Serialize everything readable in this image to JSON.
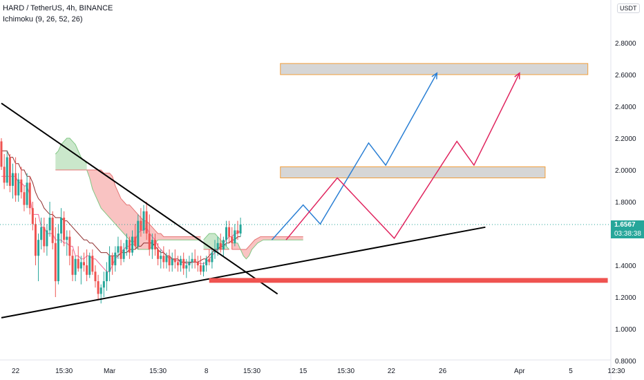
{
  "header": {
    "title": "HARD / TetherUS, 4h, BINANCE",
    "indicator": "Ichimoku (9, 26, 52, 26)"
  },
  "price_axis": {
    "currency": "USDT",
    "last_price": "1.6567",
    "countdown": "03:38:38"
  },
  "colors": {
    "up": "#26a69a",
    "down": "#ef5350",
    "cloud_bull": "#66bb6a",
    "cloud_bear": "#ef5350",
    "forecast_blue": "#2a7fd4",
    "forecast_pink": "#e0245e",
    "zone_fill": "#d6d6d6",
    "zone_border": "#f29d38",
    "support_bar": "#ef5350"
  },
  "chart_data": {
    "type": "candlestick",
    "symbol": "HARD / TetherUS",
    "interval": "4h",
    "exchange": "BINANCE",
    "y_ticks": [
      0.8,
      1.0,
      1.2,
      1.4,
      1.6,
      1.8,
      2.0,
      2.2,
      2.4,
      2.6,
      2.8
    ],
    "y_tick_labels": [
      "0.8000",
      "1.0000",
      "1.2000",
      "1.4000",
      "1.6000",
      "1.8000",
      "2.0000",
      "2.2000",
      "2.4000",
      "2.6000",
      "2.8000"
    ],
    "ylim": [
      0.8,
      3.0
    ],
    "x_ticks": [
      {
        "label": "22",
        "bar": 5
      },
      {
        "label": "15:30",
        "bar": 22
      },
      {
        "label": "Mar",
        "bar": 38
      },
      {
        "label": "15:30",
        "bar": 55
      },
      {
        "label": "8",
        "bar": 72
      },
      {
        "label": "15:30",
        "bar": 88
      },
      {
        "label": "15",
        "bar": 106
      },
      {
        "label": "15:30",
        "bar": 121
      },
      {
        "label": "22",
        "bar": 137
      },
      {
        "label": "26",
        "bar": 155
      },
      {
        "label": "Apr",
        "bar": 182
      },
      {
        "label": "5",
        "bar": 200
      },
      {
        "label": "12:30",
        "bar": 216
      }
    ],
    "candles": [
      [
        2.18,
        2.2,
        2.0,
        2.02
      ],
      [
        2.02,
        2.1,
        1.88,
        1.92
      ],
      [
        1.92,
        2.12,
        1.9,
        2.08
      ],
      [
        2.08,
        2.1,
        1.86,
        1.9
      ],
      [
        1.9,
        2.04,
        1.82,
        1.98
      ],
      [
        1.98,
        2.08,
        1.8,
        1.84
      ],
      [
        1.84,
        1.98,
        1.8,
        1.94
      ],
      [
        1.94,
        2.02,
        1.82,
        1.86
      ],
      [
        1.86,
        1.9,
        1.74,
        1.78
      ],
      [
        1.78,
        1.98,
        1.76,
        1.92
      ],
      [
        1.92,
        1.96,
        1.72,
        1.76
      ],
      [
        1.76,
        1.8,
        1.62,
        1.66
      ],
      [
        1.66,
        1.7,
        1.4,
        1.46
      ],
      [
        1.46,
        1.6,
        1.3,
        1.56
      ],
      [
        1.56,
        1.7,
        1.5,
        1.64
      ],
      [
        1.64,
        1.7,
        1.48,
        1.52
      ],
      [
        1.52,
        1.66,
        1.46,
        1.62
      ],
      [
        1.62,
        1.8,
        1.58,
        1.7
      ],
      [
        1.7,
        1.74,
        1.5,
        1.54
      ],
      [
        1.54,
        1.64,
        1.2,
        1.3
      ],
      [
        1.3,
        1.66,
        1.28,
        1.6
      ],
      [
        1.6,
        1.76,
        1.54,
        1.7
      ],
      [
        1.7,
        1.74,
        1.52,
        1.56
      ],
      [
        1.56,
        1.62,
        1.46,
        1.58
      ],
      [
        1.58,
        1.62,
        1.4,
        1.46
      ],
      [
        1.46,
        1.5,
        1.3,
        1.34
      ],
      [
        1.34,
        1.46,
        1.3,
        1.44
      ],
      [
        1.44,
        1.52,
        1.36,
        1.38
      ],
      [
        1.38,
        1.46,
        1.28,
        1.42
      ],
      [
        1.42,
        1.48,
        1.36,
        1.4
      ],
      [
        1.4,
        1.5,
        1.3,
        1.34
      ],
      [
        1.34,
        1.48,
        1.32,
        1.46
      ],
      [
        1.46,
        1.5,
        1.34,
        1.36
      ],
      [
        1.36,
        1.4,
        1.26,
        1.3
      ],
      [
        1.3,
        1.34,
        1.18,
        1.22
      ],
      [
        1.22,
        1.28,
        1.16,
        1.26
      ],
      [
        1.26,
        1.36,
        1.2,
        1.3
      ],
      [
        1.3,
        1.42,
        1.24,
        1.36
      ],
      [
        1.36,
        1.52,
        1.3,
        1.46
      ],
      [
        1.46,
        1.48,
        1.34,
        1.4
      ],
      [
        1.4,
        1.52,
        1.36,
        1.48
      ],
      [
        1.48,
        1.58,
        1.44,
        1.52
      ],
      [
        1.52,
        1.56,
        1.4,
        1.44
      ],
      [
        1.44,
        1.54,
        1.42,
        1.5
      ],
      [
        1.5,
        1.6,
        1.46,
        1.56
      ],
      [
        1.56,
        1.58,
        1.44,
        1.48
      ],
      [
        1.48,
        1.62,
        1.46,
        1.58
      ],
      [
        1.58,
        1.66,
        1.5,
        1.52
      ],
      [
        1.52,
        1.72,
        1.5,
        1.68
      ],
      [
        1.68,
        1.76,
        1.58,
        1.62
      ],
      [
        1.62,
        1.78,
        1.6,
        1.74
      ],
      [
        1.74,
        1.8,
        1.56,
        1.6
      ],
      [
        1.6,
        1.72,
        1.46,
        1.5
      ],
      [
        1.5,
        1.6,
        1.44,
        1.56
      ],
      [
        1.56,
        1.6,
        1.46,
        1.5
      ],
      [
        1.5,
        1.54,
        1.4,
        1.44
      ],
      [
        1.44,
        1.5,
        1.38,
        1.46
      ],
      [
        1.46,
        1.52,
        1.38,
        1.42
      ],
      [
        1.42,
        1.48,
        1.38,
        1.46
      ],
      [
        1.46,
        1.5,
        1.36,
        1.4
      ],
      [
        1.4,
        1.48,
        1.36,
        1.44
      ],
      [
        1.44,
        1.5,
        1.38,
        1.42
      ],
      [
        1.42,
        1.46,
        1.36,
        1.4
      ],
      [
        1.4,
        1.46,
        1.36,
        1.44
      ],
      [
        1.44,
        1.48,
        1.34,
        1.38
      ],
      [
        1.38,
        1.44,
        1.32,
        1.4
      ],
      [
        1.4,
        1.46,
        1.36,
        1.42
      ],
      [
        1.42,
        1.48,
        1.38,
        1.44
      ],
      [
        1.44,
        1.5,
        1.38,
        1.42
      ],
      [
        1.42,
        1.46,
        1.36,
        1.4
      ],
      [
        1.4,
        1.46,
        1.34,
        1.36
      ],
      [
        1.36,
        1.42,
        1.33,
        1.4
      ],
      [
        1.4,
        1.46,
        1.36,
        1.44
      ],
      [
        1.44,
        1.5,
        1.4,
        1.42
      ],
      [
        1.42,
        1.5,
        1.38,
        1.48
      ],
      [
        1.48,
        1.56,
        1.44,
        1.5
      ],
      [
        1.5,
        1.58,
        1.46,
        1.54
      ],
      [
        1.54,
        1.6,
        1.48,
        1.5
      ],
      [
        1.5,
        1.58,
        1.46,
        1.56
      ],
      [
        1.56,
        1.68,
        1.52,
        1.64
      ],
      [
        1.64,
        1.68,
        1.54,
        1.58
      ],
      [
        1.58,
        1.64,
        1.5,
        1.54
      ],
      [
        1.54,
        1.66,
        1.52,
        1.62
      ],
      [
        1.62,
        1.68,
        1.56,
        1.6
      ],
      [
        1.6,
        1.7,
        1.58,
        1.6567
      ]
    ],
    "ichimoku": {
      "tenkan": [
        1.96,
        1.96,
        1.96,
        1.96,
        1.96,
        1.96,
        1.92,
        1.92,
        1.9,
        1.9,
        1.84,
        1.72,
        1.72,
        1.72,
        1.64,
        1.64,
        1.6,
        1.6,
        1.6,
        1.56,
        1.56,
        1.56,
        1.54,
        1.54,
        1.52,
        1.52,
        1.46,
        1.46,
        1.44,
        1.44,
        1.46,
        1.46,
        1.44,
        1.44,
        1.42,
        1.4,
        1.38,
        1.36,
        1.36,
        1.4,
        1.44,
        1.46,
        1.48,
        1.5,
        1.52,
        1.52,
        1.54,
        1.56,
        1.6,
        1.62,
        1.62,
        1.64,
        1.6,
        1.58,
        1.56,
        1.52,
        1.5,
        1.48,
        1.46,
        1.44,
        1.44,
        1.43,
        1.43,
        1.42,
        1.42,
        1.41,
        1.41,
        1.42,
        1.42,
        1.42,
        1.41,
        1.41,
        1.42,
        1.44,
        1.46,
        1.48,
        1.5,
        1.52,
        1.54,
        1.56,
        1.58,
        1.58,
        1.6,
        1.6,
        1.62
      ],
      "kijun": [
        2.12,
        2.12,
        2.12,
        2.08,
        2.08,
        2.04,
        2.04,
        2.0,
        2.0,
        1.96,
        1.96,
        1.92,
        1.86,
        1.82,
        1.8,
        1.76,
        1.74,
        1.72,
        1.72,
        1.7,
        1.7,
        1.7,
        1.68,
        1.68,
        1.66,
        1.64,
        1.62,
        1.6,
        1.58,
        1.56,
        1.56,
        1.54,
        1.54,
        1.52,
        1.5,
        1.48,
        1.48,
        1.48,
        1.46,
        1.46,
        1.46,
        1.46,
        1.48,
        1.48,
        1.48,
        1.5,
        1.5,
        1.5,
        1.52,
        1.52,
        1.54,
        1.54,
        1.54,
        1.54,
        1.52,
        1.5,
        1.48,
        1.48,
        1.46,
        1.46,
        1.44,
        1.44,
        1.44,
        1.42,
        1.42,
        1.42,
        1.42,
        1.42,
        1.42,
        1.42,
        1.43,
        1.44,
        1.44,
        1.46,
        1.48,
        1.5,
        1.5,
        1.52,
        1.52,
        1.54,
        1.54,
        1.56,
        1.56,
        1.58,
        1.58
      ],
      "cloud_segments": [
        {
          "kind": "bull",
          "start": 19,
          "spanA": [
            2.1,
            2.12,
            2.16,
            2.18,
            2.2,
            2.2,
            2.18,
            2.16,
            2.12,
            2.08,
            2.06,
            2.04
          ],
          "spanB": [
            2.0,
            2.0,
            2.0,
            2.0,
            2.0,
            2.0,
            2.0,
            2.0,
            2.0,
            2.0,
            2.0,
            2.0
          ]
        },
        {
          "kind": "bear",
          "start": 30,
          "spanA": [
            2.0,
            1.95,
            1.88,
            1.84,
            1.8,
            1.76,
            1.74,
            1.72,
            1.7,
            1.68,
            1.66,
            1.64,
            1.62,
            1.6,
            1.58,
            1.56,
            1.54,
            1.52,
            1.5,
            1.5,
            1.5,
            1.5,
            1.5,
            1.52,
            1.54,
            1.56,
            1.56,
            1.56,
            1.56,
            1.56,
            1.56,
            1.56,
            1.56,
            1.56,
            1.56,
            1.56,
            1.56,
            1.56,
            1.56,
            1.56,
            1.56
          ],
          "spanB": [
            2.0,
            2.0,
            2.0,
            2.0,
            2.0,
            2.0,
            1.98,
            1.98,
            1.98,
            1.96,
            1.9,
            1.86,
            1.82,
            1.8,
            1.78,
            1.78,
            1.76,
            1.74,
            1.72,
            1.7,
            1.68,
            1.68,
            1.66,
            1.64,
            1.62,
            1.6,
            1.6,
            1.58,
            1.58,
            1.58,
            1.58,
            1.58,
            1.58,
            1.58,
            1.58,
            1.58,
            1.58,
            1.58,
            1.58,
            1.58,
            1.58
          ]
        },
        {
          "kind": "bull",
          "start": 71,
          "spanA": [
            1.56,
            1.58,
            1.6,
            1.6,
            1.6,
            1.58,
            1.56,
            1.54,
            1.52,
            1.5
          ],
          "spanB": [
            1.5,
            1.5,
            1.5,
            1.5,
            1.5,
            1.5,
            1.5,
            1.5,
            1.5,
            1.5
          ]
        },
        {
          "kind": "bear",
          "start": 81,
          "spanA": [
            1.54,
            1.54,
            1.54,
            1.5,
            1.46,
            1.44,
            1.46,
            1.5,
            1.52,
            1.54,
            1.55,
            1.56,
            1.56,
            1.56,
            1.56,
            1.56,
            1.56,
            1.56,
            1.56,
            1.56,
            1.56,
            1.56,
            1.56,
            1.56,
            1.56,
            1.56
          ],
          "spanB": [
            1.5,
            1.5,
            1.5,
            1.5,
            1.5,
            1.5,
            1.52,
            1.54,
            1.56,
            1.57,
            1.58,
            1.58,
            1.58,
            1.58,
            1.58,
            1.58,
            1.58,
            1.58,
            1.58,
            1.58,
            1.58,
            1.58,
            1.58,
            1.58,
            1.58,
            1.58
          ]
        }
      ]
    },
    "drawings": {
      "trendline_down": {
        "from": {
          "bar": 0,
          "price": 2.42
        },
        "to": {
          "bar": 97,
          "price": 1.22
        }
      },
      "trendline_up": {
        "from": {
          "bar": 0,
          "price": 1.07
        },
        "to": {
          "bar": 170,
          "price": 1.64
        }
      },
      "resistance_zones": [
        {
          "from_bar": 98,
          "to_bar": 206,
          "top": 2.67,
          "bottom": 2.6
        },
        {
          "from_bar": 98,
          "to_bar": 191,
          "top": 2.02,
          "bottom": 1.95
        }
      ],
      "support_bar": {
        "from_bar": 73,
        "to_bar": 213,
        "top": 1.32,
        "bottom": 1.29
      },
      "forecast_blue": [
        {
          "bar": 95,
          "price": 1.56
        },
        {
          "bar": 106,
          "price": 1.78
        },
        {
          "bar": 112,
          "price": 1.66
        },
        {
          "bar": 129,
          "price": 2.17
        },
        {
          "bar": 135,
          "price": 2.03
        },
        {
          "bar": 153,
          "price": 2.61
        }
      ],
      "forecast_pink": [
        {
          "bar": 100,
          "price": 1.56
        },
        {
          "bar": 118,
          "price": 1.95
        },
        {
          "bar": 138,
          "price": 1.57
        },
        {
          "bar": 160,
          "price": 2.18
        },
        {
          "bar": 166,
          "price": 2.03
        },
        {
          "bar": 182,
          "price": 2.61
        }
      ]
    }
  }
}
